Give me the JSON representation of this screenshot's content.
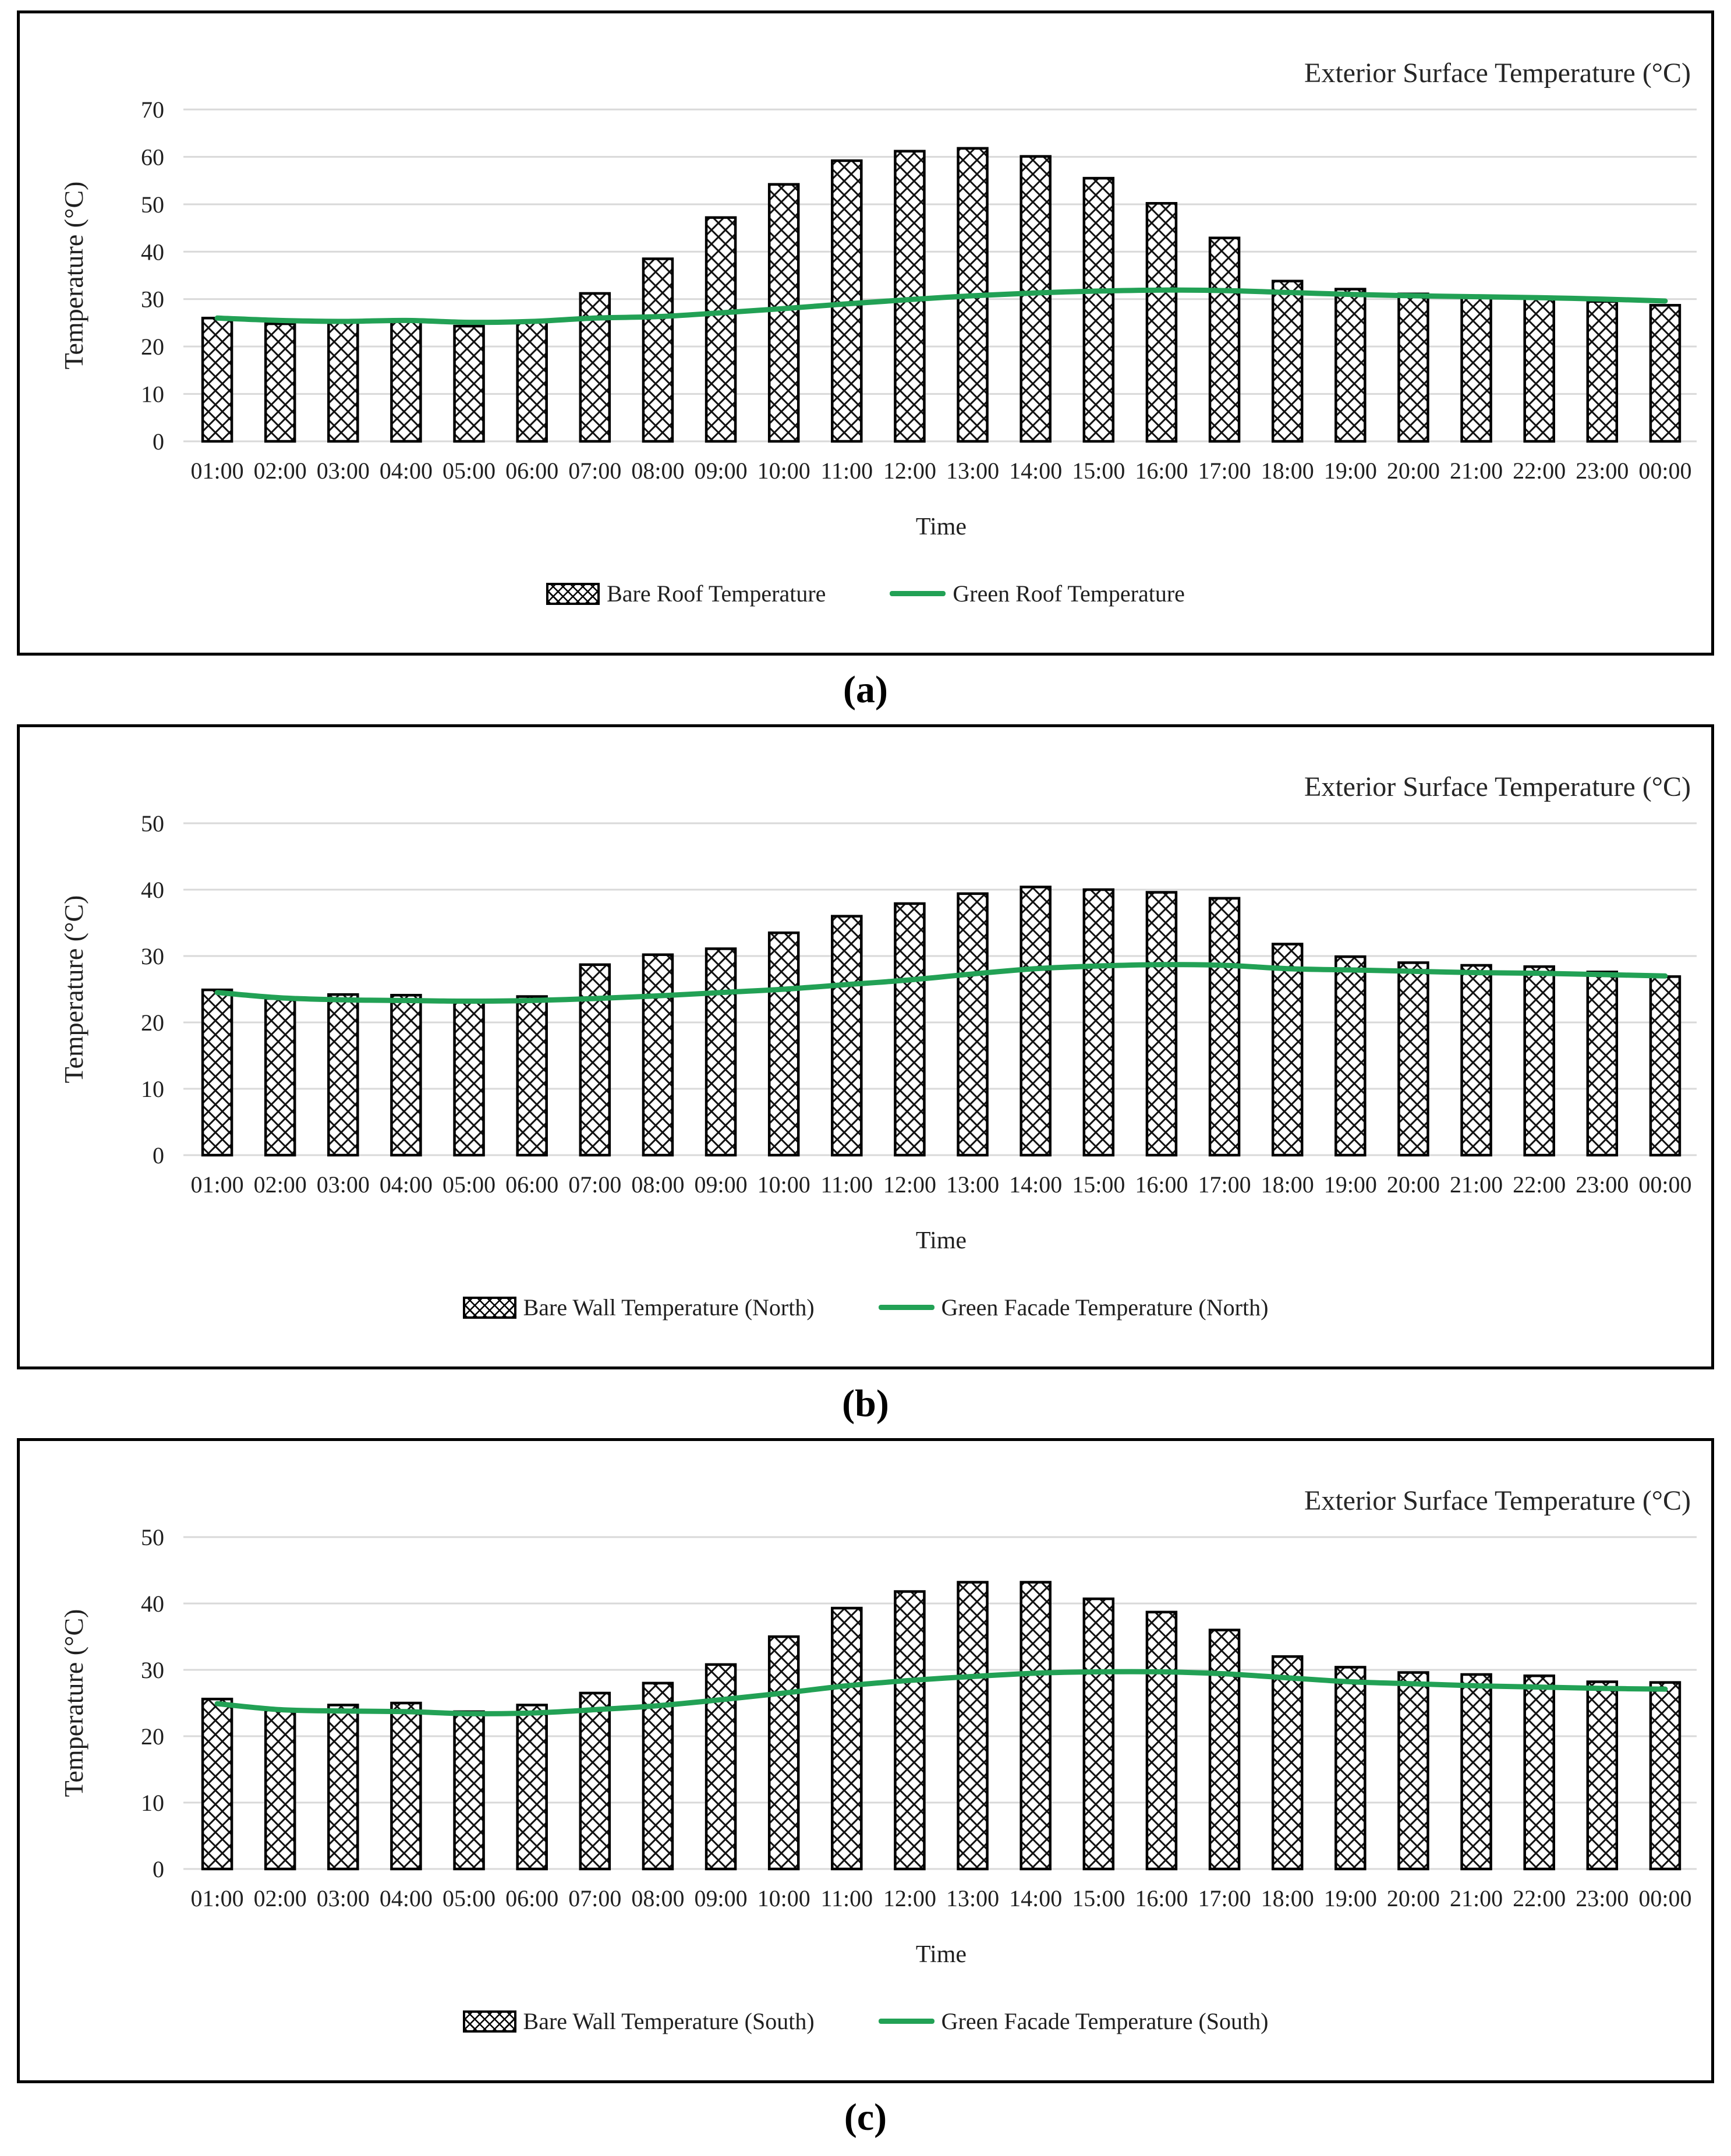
{
  "figure": {
    "captions": {
      "a": "(a)",
      "b": "(b)",
      "c": "(c)"
    }
  },
  "colors": {
    "green_line": "#22A155",
    "gridline": "#d9d9d9",
    "bar_fill": "#ffffff",
    "bar_border": "#000000",
    "tick_text": "#1f1f1f",
    "title_text": "#262626"
  },
  "chart_data": [
    {
      "id": "a",
      "type": "bar",
      "title": "Exterior Surface Temperature (°C)",
      "xlabel": "Time",
      "ylabel": "Temperature (°C)",
      "ylim": [
        0,
        70
      ],
      "ytick_step": 10,
      "grid": true,
      "legend_position": "bottom",
      "categories": [
        "01:00",
        "02:00",
        "03:00",
        "04:00",
        "05:00",
        "06:00",
        "07:00",
        "08:00",
        "09:00",
        "10:00",
        "11:00",
        "12:00",
        "13:00",
        "14:00",
        "15:00",
        "16:00",
        "17:00",
        "18:00",
        "19:00",
        "20:00",
        "21:00",
        "22:00",
        "23:00",
        "00:00"
      ],
      "series": [
        {
          "name": "Bare Roof Temperature",
          "type": "bar",
          "pattern": "crosshatch",
          "values": [
            26.0,
            24.8,
            25.3,
            25.5,
            24.3,
            25.3,
            31.2,
            38.5,
            47.2,
            54.2,
            59.2,
            61.2,
            61.8,
            60.1,
            55.5,
            50.2,
            42.9,
            33.8,
            32.1,
            31.1,
            30.7,
            30.3,
            29.5,
            28.7
          ]
        },
        {
          "name": "Green Roof Temperature",
          "type": "line",
          "values": [
            26.0,
            25.5,
            25.3,
            25.5,
            25.1,
            25.3,
            26.0,
            26.3,
            27.1,
            28.0,
            29.0,
            29.9,
            30.7,
            31.3,
            31.7,
            31.9,
            31.8,
            31.4,
            31.0,
            30.7,
            30.5,
            30.3,
            30.0,
            29.6
          ]
        }
      ]
    },
    {
      "id": "b",
      "type": "bar",
      "title": "Exterior Surface Temperature (°C)",
      "xlabel": "Time",
      "ylabel": "Temperature (°C)",
      "ylim": [
        0,
        50
      ],
      "ytick_step": 10,
      "grid": true,
      "legend_position": "bottom",
      "categories": [
        "01:00",
        "02:00",
        "03:00",
        "04:00",
        "05:00",
        "06:00",
        "07:00",
        "08:00",
        "09:00",
        "10:00",
        "11:00",
        "12:00",
        "13:00",
        "14:00",
        "15:00",
        "16:00",
        "17:00",
        "18:00",
        "19:00",
        "20:00",
        "21:00",
        "22:00",
        "23:00",
        "00:00"
      ],
      "series": [
        {
          "name": "Bare Wall Temperature (North)",
          "type": "bar",
          "pattern": "crosshatch",
          "values": [
            24.9,
            23.6,
            24.2,
            24.1,
            23.4,
            23.9,
            28.7,
            30.2,
            31.1,
            33.5,
            36.0,
            37.9,
            39.4,
            40.4,
            40.0,
            39.6,
            38.7,
            31.8,
            29.9,
            29.0,
            28.6,
            28.4,
            27.6,
            26.9
          ]
        },
        {
          "name": "Green Facade Temperature (North)",
          "type": "line",
          "values": [
            24.5,
            23.7,
            23.4,
            23.3,
            23.2,
            23.3,
            23.6,
            24.0,
            24.5,
            25.0,
            25.7,
            26.4,
            27.3,
            28.1,
            28.5,
            28.7,
            28.6,
            28.1,
            27.9,
            27.7,
            27.5,
            27.4,
            27.2,
            27.0
          ]
        }
      ]
    },
    {
      "id": "c",
      "type": "bar",
      "title": "Exterior Surface Temperature (°C)",
      "xlabel": "Time",
      "ylabel": "Temperature (°C)",
      "ylim": [
        0,
        50
      ],
      "ytick_step": 10,
      "grid": true,
      "legend_position": "bottom",
      "categories": [
        "01:00",
        "02:00",
        "03:00",
        "04:00",
        "05:00",
        "06:00",
        "07:00",
        "08:00",
        "09:00",
        "10:00",
        "11:00",
        "12:00",
        "13:00",
        "14:00",
        "15:00",
        "16:00",
        "17:00",
        "18:00",
        "19:00",
        "20:00",
        "21:00",
        "22:00",
        "23:00",
        "00:00"
      ],
      "series": [
        {
          "name": "Bare Wall Temperature (South)",
          "type": "bar",
          "pattern": "crosshatch",
          "values": [
            25.6,
            24.1,
            24.7,
            25.0,
            23.7,
            24.7,
            26.5,
            28.0,
            30.8,
            35.0,
            39.3,
            41.8,
            43.2,
            43.2,
            40.7,
            38.7,
            36.0,
            32.0,
            30.4,
            29.6,
            29.3,
            29.1,
            28.2,
            28.1
          ]
        },
        {
          "name": "Green Facade Temperature (South)",
          "type": "line",
          "values": [
            24.9,
            24.0,
            23.8,
            23.7,
            23.4,
            23.5,
            24.0,
            24.6,
            25.5,
            26.5,
            27.6,
            28.4,
            29.0,
            29.5,
            29.7,
            29.7,
            29.4,
            28.8,
            28.2,
            27.9,
            27.6,
            27.4,
            27.2,
            27.1
          ]
        }
      ]
    }
  ]
}
